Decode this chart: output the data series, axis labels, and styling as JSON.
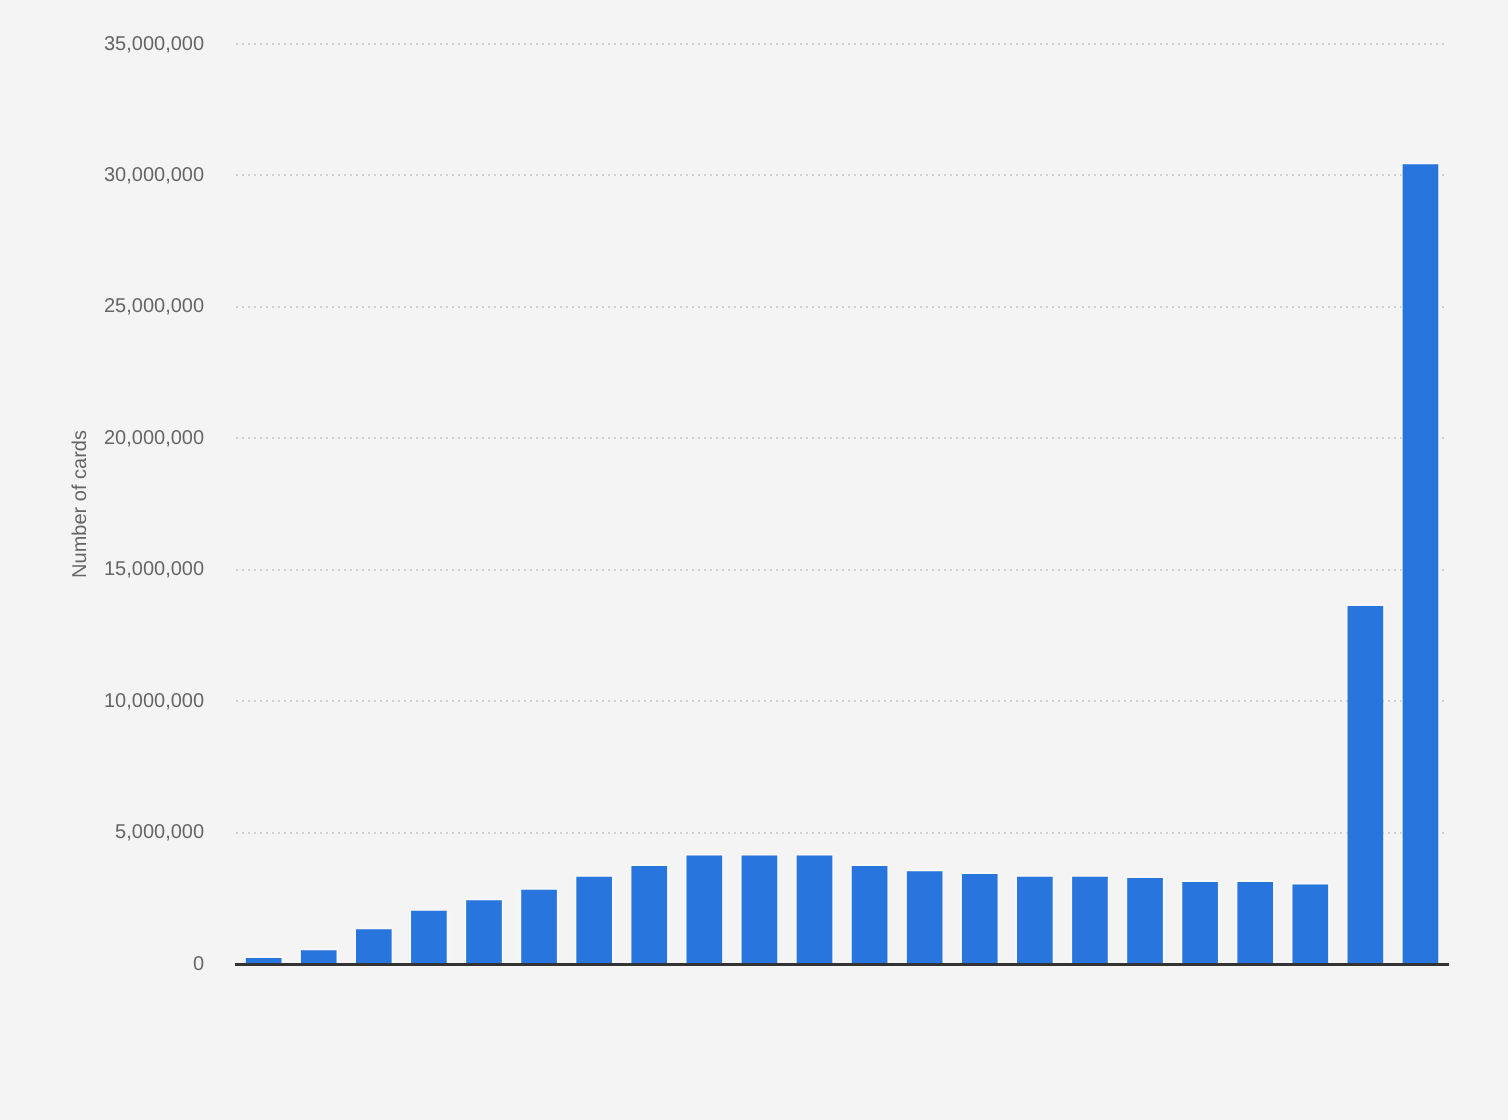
{
  "chart_data": {
    "type": "bar",
    "ylabel": "Number of cards",
    "categories": [
      null,
      null,
      null,
      null,
      null,
      null,
      null,
      null,
      null,
      null,
      null,
      null,
      null,
      null,
      null,
      null,
      null,
      null,
      null,
      null,
      null,
      null
    ],
    "values": [
      300000,
      600000,
      1400000,
      2100000,
      2500000,
      2900000,
      3400000,
      3800000,
      4200000,
      4200000,
      4200000,
      3800000,
      3600000,
      3500000,
      3400000,
      3400000,
      3350000,
      3200000,
      3200000,
      3100000,
      13700000,
      30500000
    ],
    "color": "#2876dd",
    "ylim": [
      0,
      35000000
    ],
    "yticks": [
      0,
      {
        "value": 5000000,
        "label": "5,000,000"
      },
      {
        "value": 10000000,
        "label": "10,000,000"
      },
      {
        "value": 15000000,
        "label": "15,000,000"
      },
      {
        "value": 20000000,
        "label": "20,000,000"
      },
      {
        "value": 25000000,
        "label": "25,000,000"
      },
      {
        "value": 30000000,
        "label": "30,000,000"
      },
      {
        "value": 35000000,
        "label": "35,000,000"
      }
    ],
    "grid": "y"
  }
}
